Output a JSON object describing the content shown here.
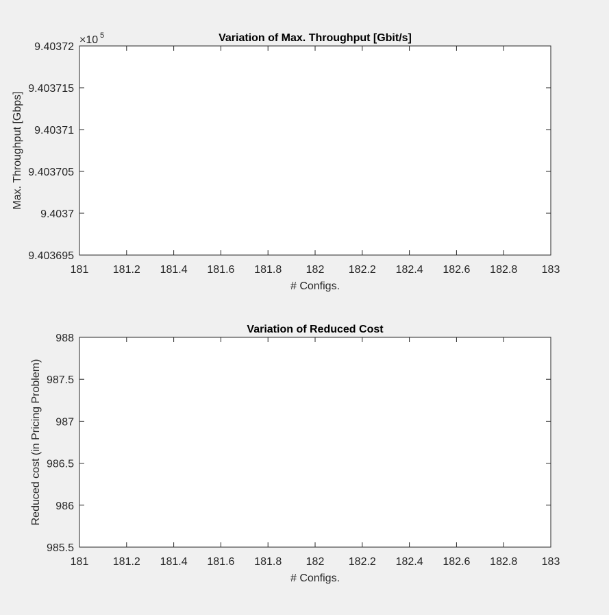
{
  "figure": {
    "background": "#f0f0f0",
    "axes_background": "#ffffff",
    "axis_color": "#262626"
  },
  "chart_data": [
    {
      "type": "line",
      "title": "Variation of Max. Throughput [Gbit/s]",
      "xlabel": "# Configs.",
      "ylabel": "Max. Throughput [Gbps]",
      "xlim": [
        181,
        183
      ],
      "ylim": [
        940369.5,
        940372
      ],
      "x_ticks": [
        181,
        181.2,
        181.4,
        181.6,
        181.8,
        182,
        182.2,
        182.4,
        182.6,
        182.8,
        183
      ],
      "x_tick_labels": [
        "181",
        "181.2",
        "181.4",
        "181.6",
        "181.8",
        "182",
        "182.2",
        "182.4",
        "182.6",
        "182.8",
        "183"
      ],
      "y_ticks": [
        940369.5,
        940370,
        940370.5,
        940371,
        940371.5,
        940372
      ],
      "y_tick_labels": [
        "9.403695",
        "9.4037",
        "9.403705",
        "9.40371",
        "9.403715",
        "9.40372"
      ],
      "y_exponent_label": "×10",
      "y_exponent_power": "5",
      "series": []
    },
    {
      "type": "line",
      "title": "Variation of Reduced Cost",
      "xlabel": "# Configs.",
      "ylabel": "Reduced cost (in Pricing Problem)",
      "xlim": [
        181,
        183
      ],
      "ylim": [
        985.5,
        988
      ],
      "x_ticks": [
        181,
        181.2,
        181.4,
        181.6,
        181.8,
        182,
        182.2,
        182.4,
        182.6,
        182.8,
        183
      ],
      "x_tick_labels": [
        "181",
        "181.2",
        "181.4",
        "181.6",
        "181.8",
        "182",
        "182.2",
        "182.4",
        "182.6",
        "182.8",
        "183"
      ],
      "y_ticks": [
        985.5,
        986,
        986.5,
        987,
        987.5,
        988
      ],
      "y_tick_labels": [
        "985.5",
        "986",
        "986.5",
        "987",
        "987.5",
        "988"
      ],
      "series": []
    }
  ]
}
